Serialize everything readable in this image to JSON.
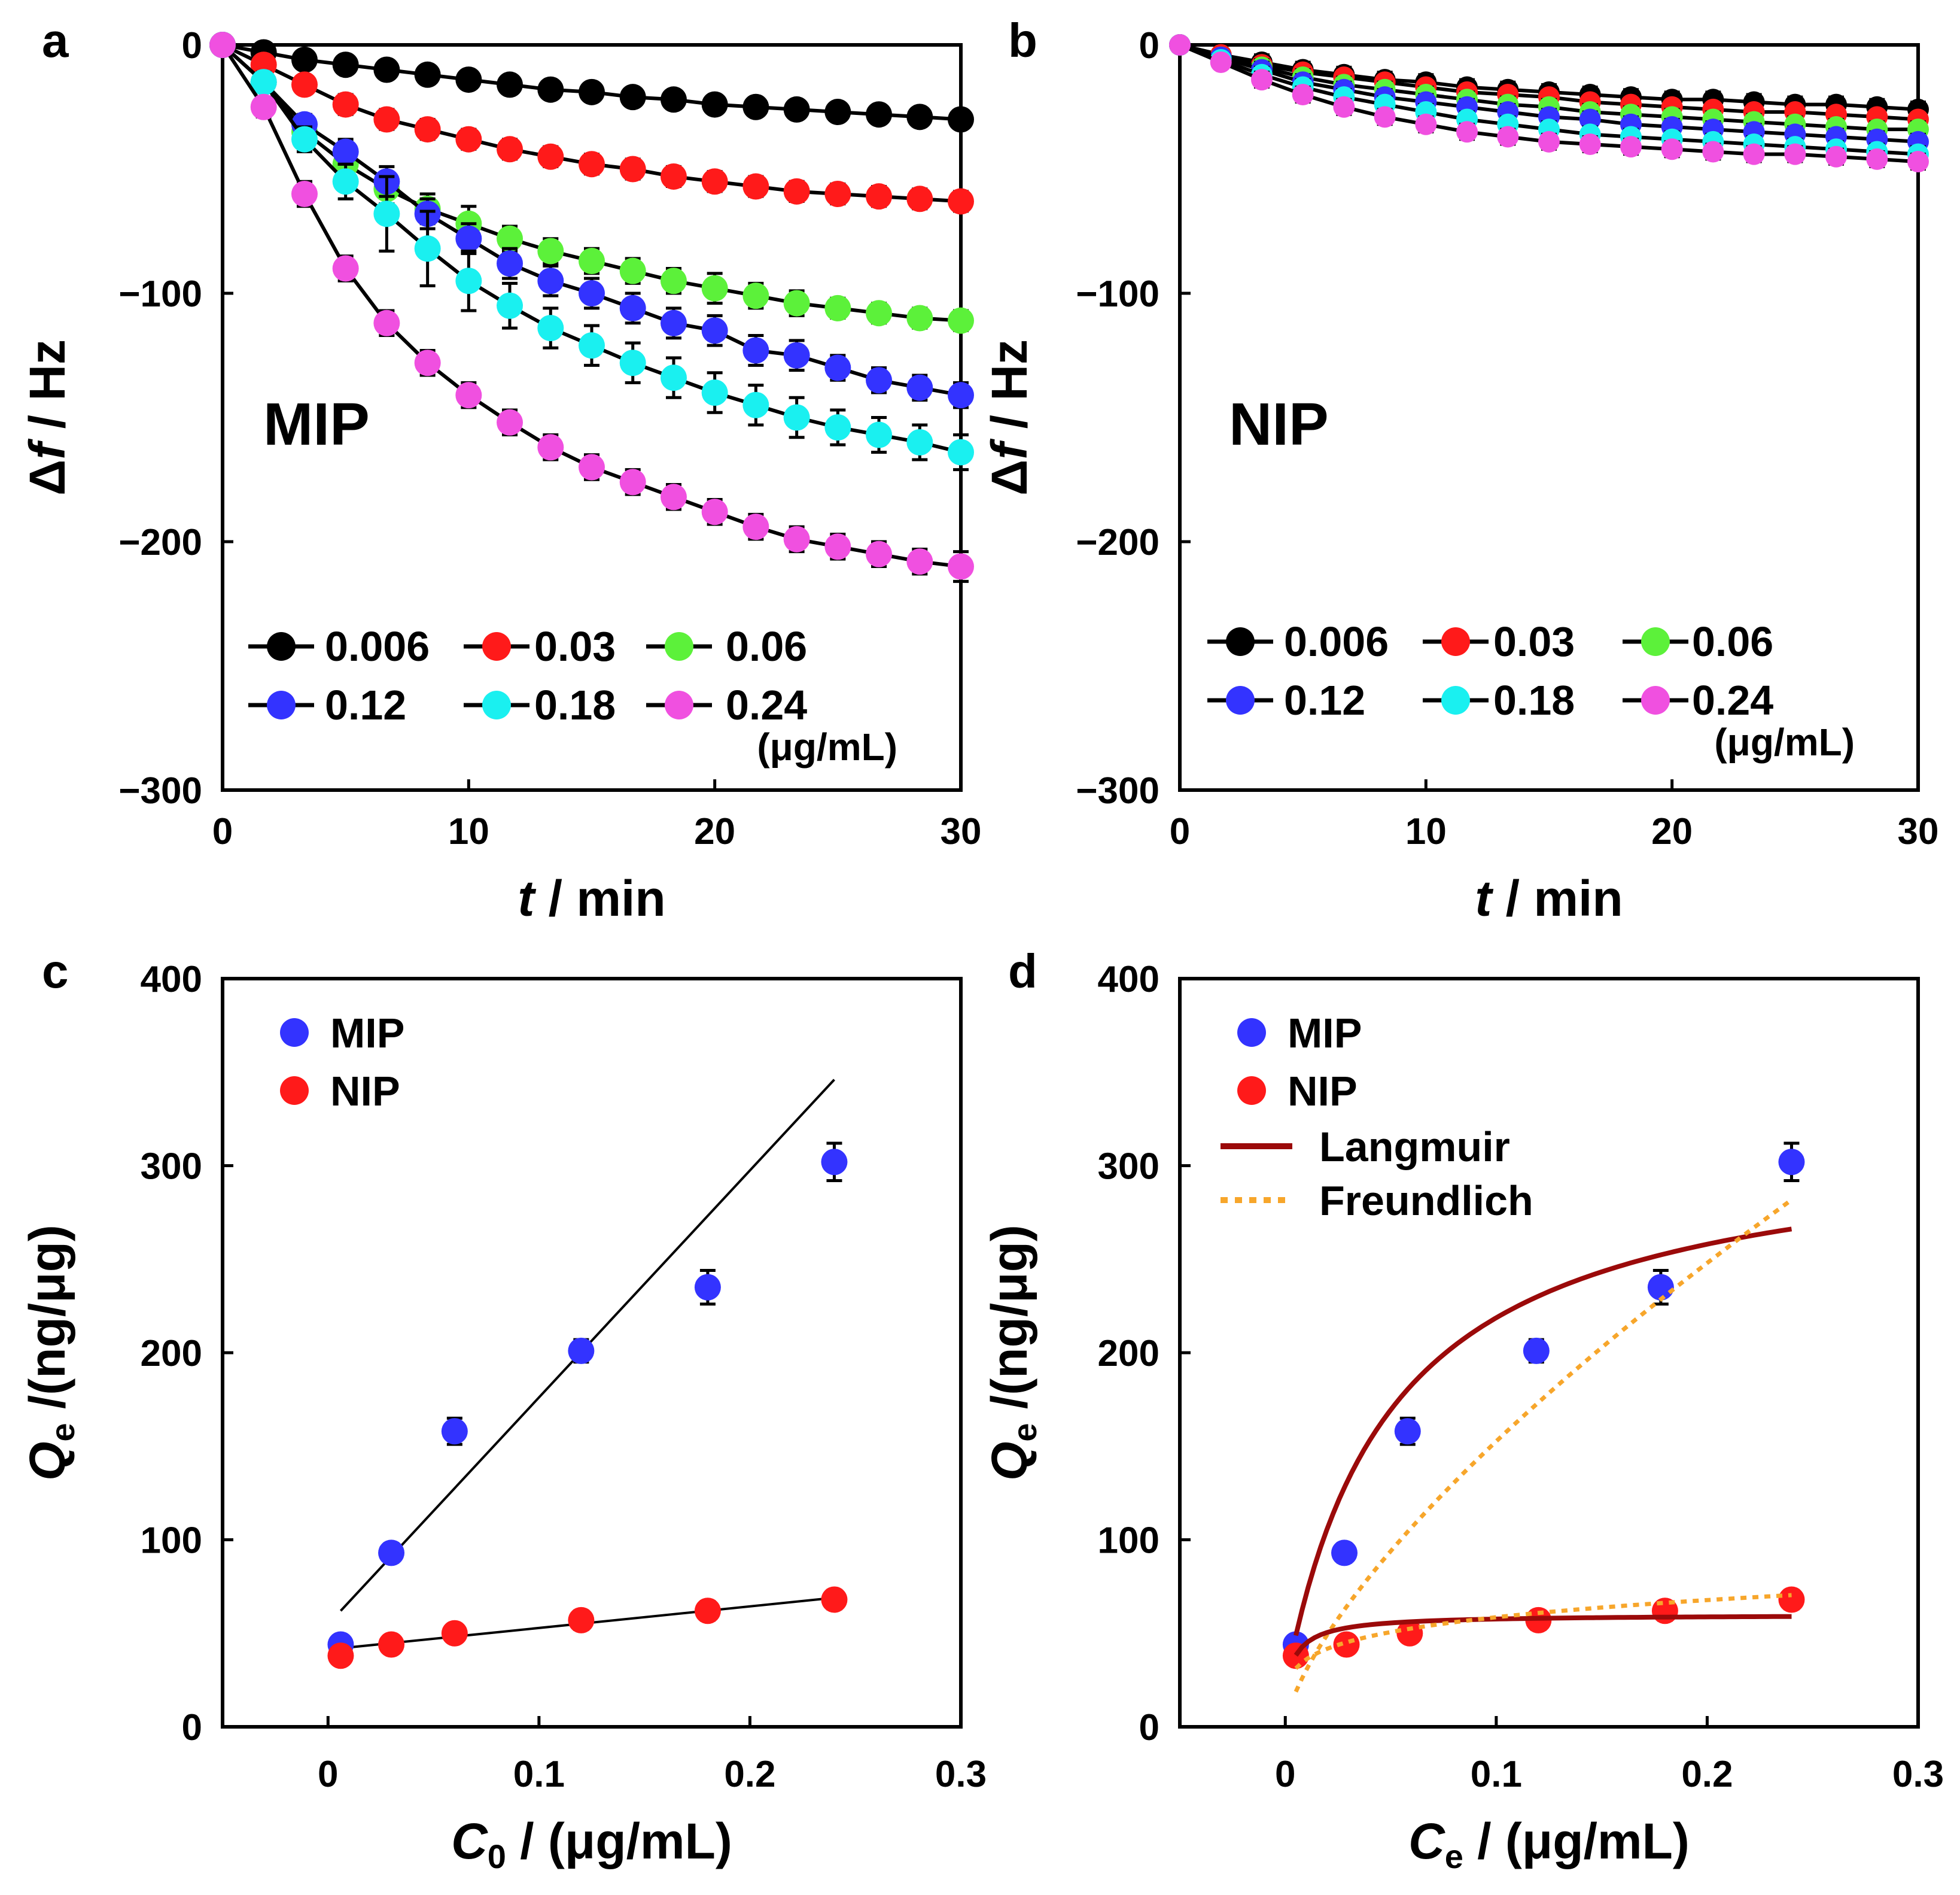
{
  "colors": {
    "c0.006": "#000000",
    "c0.03": "#ff1a1a",
    "c0.06": "#5cf13a",
    "c0.12": "#3333ff",
    "c0.18": "#1af0f0",
    "c0.24": "#f050e0",
    "mip": "#3333ff",
    "nip": "#ff1a1a",
    "langmuir": "#9b0a0a",
    "freundlich": "#f7a62b"
  },
  "chart_data": [
    {
      "panel": "a",
      "type": "line",
      "annotation": "MIP",
      "xlabel": "t / min",
      "ylabel": "Δf / Hz",
      "xlim": [
        0,
        30
      ],
      "ylim": [
        -300,
        0
      ],
      "xticks": [
        0,
        10,
        20,
        30
      ],
      "yticks": [
        0,
        -100,
        -200,
        -300
      ],
      "ytick_labels": [
        "0",
        "−100",
        "−200",
        "−300"
      ],
      "legend_unit": "(μg/mL)",
      "x": [
        0,
        1.67,
        3.33,
        5,
        6.67,
        8.33,
        10,
        11.67,
        13.33,
        15,
        16.67,
        18.33,
        20,
        21.67,
        23.33,
        25,
        26.67,
        28.33,
        30
      ],
      "series": [
        {
          "name": "0.006",
          "values": [
            0,
            -3,
            -6,
            -8,
            -10,
            -12,
            -14,
            -16,
            -18,
            -19,
            -21,
            -22,
            -24,
            -25,
            -26,
            -27,
            -28,
            -29,
            -30
          ],
          "err": [
            1,
            2,
            3,
            3,
            3,
            3,
            3,
            3,
            3,
            3,
            3,
            3,
            3,
            3,
            3,
            3,
            3,
            3,
            3
          ]
        },
        {
          "name": "0.03",
          "values": [
            0,
            -8,
            -16,
            -24,
            -30,
            -34,
            -38,
            -42,
            -45,
            -48,
            -50,
            -53,
            -55,
            -57,
            -59,
            -60,
            -61,
            -62,
            -63
          ],
          "err": [
            1,
            3,
            3,
            4,
            4,
            4,
            4,
            4,
            4,
            4,
            4,
            4,
            4,
            4,
            4,
            4,
            4,
            4,
            4
          ]
        },
        {
          "name": "0.06",
          "values": [
            0,
            -15,
            -35,
            -48,
            -58,
            -66,
            -72,
            -78,
            -83,
            -87,
            -91,
            -95,
            -98,
            -101,
            -104,
            -106,
            -108,
            -110,
            -111
          ],
          "err": [
            1,
            3,
            4,
            5,
            6,
            6,
            7,
            5,
            5,
            5,
            5,
            5,
            6,
            5,
            5,
            4,
            4,
            4,
            4
          ]
        },
        {
          "name": "0.12",
          "values": [
            0,
            -15,
            -32,
            -43,
            -55,
            -68,
            -78,
            -88,
            -95,
            -100,
            -106,
            -112,
            -115,
            -123,
            -125,
            -130,
            -135,
            -138,
            -141
          ],
          "err": [
            1,
            3,
            4,
            5,
            6,
            6,
            6,
            6,
            6,
            6,
            6,
            6,
            6,
            6,
            6,
            5,
            5,
            5,
            5
          ]
        },
        {
          "name": "0.18",
          "values": [
            0,
            -15,
            -38,
            -55,
            -68,
            -82,
            -95,
            -105,
            -114,
            -121,
            -128,
            -134,
            -140,
            -145,
            -150,
            -154,
            -157,
            -160,
            -164
          ],
          "err": [
            1,
            4,
            5,
            7,
            15,
            15,
            12,
            9,
            8,
            8,
            8,
            8,
            8,
            8,
            8,
            7,
            7,
            7,
            7
          ]
        },
        {
          "name": "0.24",
          "values": [
            0,
            -25,
            -60,
            -90,
            -112,
            -128,
            -141,
            -152,
            -162,
            -170,
            -176,
            -182,
            -188,
            -194,
            -199,
            -202,
            -205,
            -208,
            -210
          ],
          "err": [
            1,
            4,
            5,
            5,
            5,
            5,
            5,
            5,
            5,
            5,
            5,
            5,
            5,
            5,
            5,
            5,
            5,
            5,
            6
          ]
        }
      ]
    },
    {
      "panel": "b",
      "type": "line",
      "annotation": "NIP",
      "xlabel": "t / min",
      "ylabel": "Δf / Hz",
      "xlim": [
        0,
        30
      ],
      "ylim": [
        -300,
        0
      ],
      "xticks": [
        0,
        10,
        20,
        30
      ],
      "yticks": [
        0,
        -100,
        -200,
        -300
      ],
      "ytick_labels": [
        "0",
        "−100",
        "−200",
        "−300"
      ],
      "legend_unit": "(μg/mL)",
      "x": [
        0,
        1.67,
        3.33,
        5,
        6.67,
        8.33,
        10,
        11.67,
        13.33,
        15,
        16.67,
        18.33,
        20,
        21.67,
        23.33,
        25,
        26.67,
        28.33,
        30
      ],
      "series": [
        {
          "name": "0.006",
          "values": [
            0,
            -4,
            -7,
            -10,
            -12,
            -14,
            -15,
            -17,
            -18,
            -19,
            -20,
            -21,
            -22,
            -22,
            -23,
            -24,
            -24,
            -25,
            -26
          ],
          "err": [
            1,
            2,
            3,
            3,
            3,
            3,
            3,
            3,
            3,
            3,
            3,
            3,
            3,
            3,
            3,
            3,
            3,
            3,
            3
          ]
        },
        {
          "name": "0.03",
          "values": [
            0,
            -4,
            -8,
            -11,
            -13,
            -15,
            -17,
            -19,
            -20,
            -21,
            -23,
            -24,
            -25,
            -26,
            -27,
            -27,
            -28,
            -29,
            -30
          ],
          "err": [
            1,
            2,
            3,
            3,
            3,
            3,
            3,
            3,
            3,
            3,
            3,
            3,
            3,
            3,
            3,
            3,
            3,
            3,
            3
          ]
        },
        {
          "name": "0.06",
          "values": [
            0,
            -5,
            -9,
            -13,
            -16,
            -18,
            -20,
            -22,
            -24,
            -25,
            -27,
            -28,
            -29,
            -30,
            -31,
            -32,
            -33,
            -34,
            -34
          ],
          "err": [
            1,
            2,
            3,
            3,
            3,
            3,
            3,
            3,
            3,
            3,
            3,
            3,
            3,
            3,
            3,
            3,
            3,
            3,
            3
          ]
        },
        {
          "name": "0.12",
          "values": [
            0,
            -5,
            -10,
            -15,
            -18,
            -21,
            -23,
            -25,
            -27,
            -29,
            -30,
            -32,
            -33,
            -34,
            -35,
            -36,
            -37,
            -38,
            -39
          ],
          "err": [
            1,
            2,
            3,
            3,
            3,
            3,
            3,
            3,
            3,
            3,
            3,
            3,
            3,
            3,
            3,
            3,
            3,
            3,
            3
          ]
        },
        {
          "name": "0.18",
          "values": [
            0,
            -6,
            -12,
            -17,
            -21,
            -24,
            -27,
            -30,
            -32,
            -34,
            -36,
            -37,
            -38,
            -39,
            -40,
            -41,
            -42,
            -43,
            -44
          ],
          "err": [
            1,
            2,
            3,
            3,
            3,
            3,
            3,
            3,
            3,
            3,
            3,
            3,
            3,
            3,
            3,
            3,
            3,
            3,
            3
          ]
        },
        {
          "name": "0.24",
          "values": [
            0,
            -7,
            -14,
            -20,
            -25,
            -29,
            -32,
            -35,
            -37,
            -39,
            -40,
            -41,
            -42,
            -43,
            -44,
            -44,
            -45,
            -46,
            -47
          ],
          "err": [
            1,
            2,
            3,
            3,
            3,
            3,
            3,
            3,
            3,
            3,
            3,
            3,
            3,
            3,
            3,
            3,
            3,
            3,
            3
          ]
        }
      ]
    },
    {
      "panel": "c",
      "type": "scatter",
      "xlabel": "C0 / (μg/mL)",
      "ylabel": "Qe /(ng/μg)",
      "xlim": [
        -0.05,
        0.3
      ],
      "ylim": [
        0,
        400
      ],
      "xticks": [
        0,
        0.1,
        0.2,
        0.3
      ],
      "xtick_labels": [
        "0",
        "0.1",
        "0.2",
        "0.3"
      ],
      "yticks": [
        0,
        100,
        200,
        300,
        400
      ],
      "series": [
        {
          "name": "MIP",
          "x": [
            0.006,
            0.03,
            0.06,
            0.12,
            0.18,
            0.24
          ],
          "values": [
            44,
            93,
            158,
            201,
            235,
            302
          ],
          "err": [
            4,
            5,
            7,
            6,
            9,
            10
          ]
        },
        {
          "name": "NIP",
          "x": [
            0.006,
            0.03,
            0.06,
            0.12,
            0.18,
            0.24
          ],
          "values": [
            38,
            44,
            50,
            57,
            62,
            68
          ],
          "err": [
            4,
            4,
            4,
            5,
            5,
            5
          ]
        }
      ],
      "fit_lines": [
        {
          "name": "MIP linear fit",
          "x": [
            0.006,
            0.24
          ],
          "y": [
            62,
            346
          ]
        },
        {
          "name": "NIP linear fit",
          "x": [
            0.006,
            0.24
          ],
          "y": [
            42,
            69
          ]
        }
      ]
    },
    {
      "panel": "d",
      "type": "scatter",
      "xlabel": "Ce / (μg/mL)",
      "ylabel": "Qe /(ng/μg)",
      "xlim": [
        -0.05,
        0.3
      ],
      "ylim": [
        0,
        400
      ],
      "xticks": [
        0,
        0.1,
        0.2,
        0.3
      ],
      "xtick_labels": [
        "0",
        "0.1",
        "0.2",
        "0.3"
      ],
      "yticks": [
        0,
        100,
        200,
        300,
        400
      ],
      "series": [
        {
          "name": "MIP",
          "x": [
            0.005,
            0.028,
            0.058,
            0.119,
            0.178,
            0.24
          ],
          "values": [
            44,
            93,
            158,
            201,
            235,
            302
          ],
          "err": [
            4,
            5,
            7,
            6,
            9,
            10
          ]
        },
        {
          "name": "NIP",
          "x": [
            0.005,
            0.029,
            0.059,
            0.12,
            0.18,
            0.24
          ],
          "values": [
            38,
            44,
            50,
            57,
            62,
            68
          ],
          "err": [
            4,
            4,
            4,
            5,
            5,
            5
          ]
        }
      ],
      "fits": [
        {
          "name": "Langmuir",
          "target": "MIP",
          "model": "Qmax*K*x/(1+K*x)",
          "offset": 22,
          "params": {
            "Qmax": 295,
            "K": 20
          },
          "xrange": [
            0.005,
            0.24
          ]
        },
        {
          "name": "Freundlich",
          "target": "MIP",
          "model": "Kf*x^n",
          "params": {
            "Kf": 765,
            "n": 0.7
          },
          "xrange": [
            0.005,
            0.24
          ]
        },
        {
          "name": "Langmuir",
          "target": "NIP",
          "model": "Qmax*K*x/(1+K*x)",
          "offset": 22,
          "params": {
            "Qmax": 38,
            "K": 150
          },
          "xrange": [
            0.005,
            0.24
          ]
        },
        {
          "name": "Freundlich",
          "target": "NIP",
          "model": "Kf*x^n",
          "params": {
            "Kf": 95,
            "n": 0.21
          },
          "xrange": [
            0.005,
            0.24
          ]
        }
      ]
    }
  ]
}
